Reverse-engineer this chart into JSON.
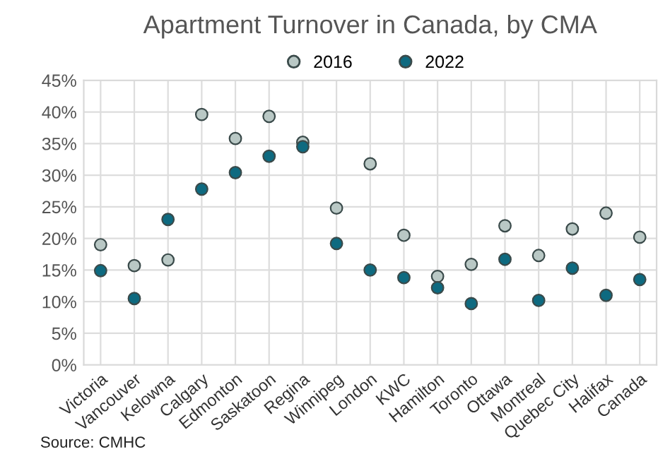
{
  "chart_data": {
    "type": "scatter",
    "title": "Apartment Turnover in Canada, by CMA",
    "categories": [
      "Victoria",
      "Vancouver",
      "Kelowna",
      "Calgary",
      "Edmonton",
      "Saskatoon",
      "Regina",
      "Winnipeg",
      "London",
      "KWC",
      "Hamilton",
      "Toronto",
      "Ottawa",
      "Montreal",
      "Quebec City",
      "Halifax",
      "Canada"
    ],
    "series": [
      {
        "name": "2016",
        "color": "#b9c8c5",
        "values": [
          19.0,
          15.7,
          16.6,
          39.6,
          35.8,
          39.3,
          35.2,
          24.8,
          31.8,
          20.5,
          14.0,
          15.9,
          22.0,
          17.3,
          21.5,
          24.0,
          20.2
        ]
      },
      {
        "name": "2022",
        "color": "#0e6a80",
        "values": [
          14.9,
          10.5,
          23.0,
          27.8,
          30.4,
          33.0,
          34.5,
          19.2,
          15.0,
          13.8,
          12.2,
          9.7,
          16.7,
          10.2,
          15.3,
          11.0,
          13.5
        ]
      }
    ],
    "ylim": [
      0,
      45
    ],
    "yticks": [
      {
        "value": 0,
        "label": "0%"
      },
      {
        "value": 5,
        "label": "5%"
      },
      {
        "value": 10,
        "label": "10%"
      },
      {
        "value": 15,
        "label": "15%"
      },
      {
        "value": 20,
        "label": "20%"
      },
      {
        "value": 25,
        "label": "25%"
      },
      {
        "value": 30,
        "label": "30%"
      },
      {
        "value": 35,
        "label": "35%"
      },
      {
        "value": 40,
        "label": "40%"
      },
      {
        "value": 45,
        "label": "45%"
      }
    ],
    "grid": true,
    "legend": "top",
    "marker": "circle",
    "annotations": [
      "Source: CMHC"
    ]
  }
}
